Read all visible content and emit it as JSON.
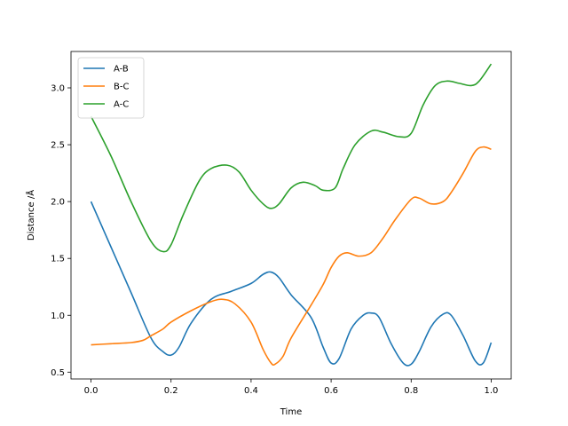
{
  "chart_data": {
    "type": "line",
    "title": "",
    "xlabel": "Time",
    "ylabel": "Distance /Å",
    "xlim": [
      -0.05,
      1.05
    ],
    "ylim": [
      0.44,
      3.32
    ],
    "xticks": [
      0.0,
      0.2,
      0.4,
      0.6,
      0.8,
      1.0
    ],
    "xtick_labels": [
      "0.0",
      "0.2",
      "0.4",
      "0.6",
      "0.8",
      "1.0"
    ],
    "yticks": [
      0.5,
      1.0,
      1.5,
      2.0,
      2.5,
      3.0
    ],
    "ytick_labels": [
      "0.5",
      "1.0",
      "1.5",
      "2.0",
      "2.5",
      "3.0"
    ],
    "grid": false,
    "legend": "top-left",
    "series": [
      {
        "name": "A-B",
        "color": "#1f77b4",
        "x": [
          0.0,
          0.05,
          0.1,
          0.15,
          0.18,
          0.2,
          0.22,
          0.25,
          0.3,
          0.35,
          0.4,
          0.43,
          0.45,
          0.47,
          0.5,
          0.55,
          0.58,
          0.6,
          0.62,
          0.65,
          0.68,
          0.7,
          0.72,
          0.75,
          0.78,
          0.8,
          0.82,
          0.85,
          0.88,
          0.9,
          0.93,
          0.96,
          0.98,
          1.0
        ],
        "y": [
          2.0,
          1.6,
          1.2,
          0.8,
          0.68,
          0.65,
          0.72,
          0.93,
          1.14,
          1.21,
          1.28,
          1.36,
          1.38,
          1.33,
          1.18,
          0.98,
          0.72,
          0.58,
          0.62,
          0.88,
          1.0,
          1.02,
          0.98,
          0.75,
          0.58,
          0.57,
          0.68,
          0.9,
          1.01,
          1.0,
          0.82,
          0.6,
          0.58,
          0.76
        ]
      },
      {
        "name": "B-C",
        "color": "#ff7f0e",
        "x": [
          0.0,
          0.05,
          0.1,
          0.13,
          0.15,
          0.18,
          0.2,
          0.25,
          0.3,
          0.33,
          0.36,
          0.4,
          0.43,
          0.45,
          0.46,
          0.48,
          0.5,
          0.55,
          0.58,
          0.6,
          0.62,
          0.64,
          0.67,
          0.7,
          0.73,
          0.76,
          0.8,
          0.82,
          0.85,
          0.88,
          0.9,
          0.93,
          0.96,
          0.98,
          1.0
        ],
        "y": [
          0.74,
          0.75,
          0.76,
          0.78,
          0.82,
          0.88,
          0.94,
          1.04,
          1.12,
          1.14,
          1.1,
          0.94,
          0.7,
          0.58,
          0.57,
          0.64,
          0.8,
          1.09,
          1.27,
          1.42,
          1.52,
          1.55,
          1.52,
          1.55,
          1.68,
          1.84,
          2.02,
          2.03,
          1.98,
          2.0,
          2.08,
          2.25,
          2.44,
          2.48,
          2.46
        ]
      },
      {
        "name": "A-C",
        "color": "#2ca02c",
        "x": [
          0.0,
          0.05,
          0.1,
          0.15,
          0.18,
          0.2,
          0.23,
          0.27,
          0.3,
          0.34,
          0.37,
          0.4,
          0.43,
          0.45,
          0.47,
          0.5,
          0.53,
          0.56,
          0.58,
          0.61,
          0.63,
          0.66,
          0.7,
          0.73,
          0.77,
          0.8,
          0.83,
          0.86,
          0.89,
          0.92,
          0.95,
          0.97,
          1.0
        ],
        "y": [
          2.75,
          2.4,
          2.0,
          1.65,
          1.56,
          1.62,
          1.88,
          2.18,
          2.29,
          2.32,
          2.26,
          2.1,
          1.98,
          1.94,
          1.98,
          2.12,
          2.17,
          2.14,
          2.1,
          2.12,
          2.29,
          2.5,
          2.62,
          2.61,
          2.57,
          2.6,
          2.85,
          3.02,
          3.06,
          3.04,
          3.02,
          3.06,
          3.21
        ]
      }
    ]
  }
}
